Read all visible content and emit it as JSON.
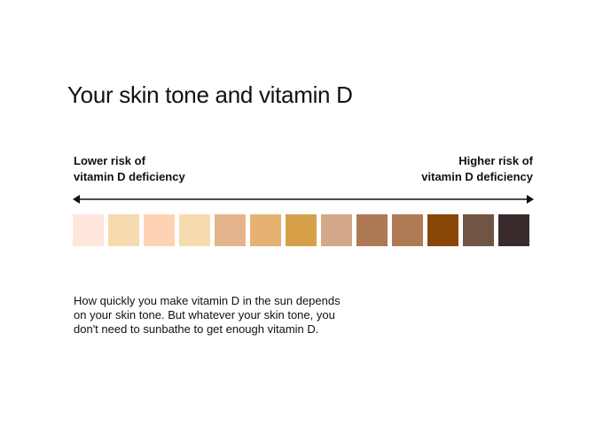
{
  "title": "Your skin tone and vitamin  D",
  "scale": {
    "left_label": [
      "Lower risk of",
      "vitamin D deficiency"
    ],
    "right_label": [
      "Higher risk of",
      "vitamin D deficiency"
    ],
    "swatch_colors": [
      "#fee6dd",
      "#f7dbb0",
      "#fdd2b5",
      "#f7dbb0",
      "#e5b38b",
      "#e6b272",
      "#d7a048",
      "#d4a78b",
      "#ae7955",
      "#b07a55",
      "#884607",
      "#705444",
      "#3a2b2d"
    ]
  },
  "body": [
    "How quickly you make vitamin D in the sun depends",
    "on your skin tone. But whatever your skin tone, you",
    "don't need to sunbathe to get enough vitamin D."
  ]
}
